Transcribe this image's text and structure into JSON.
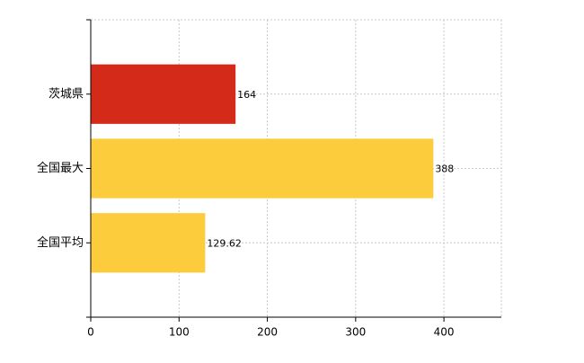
{
  "chart_data": {
    "type": "bar",
    "orientation": "horizontal",
    "categories": [
      "茨城県",
      "全国最大",
      "全国平均"
    ],
    "values": [
      164,
      388,
      129.62
    ],
    "colors": [
      "#d42a1a",
      "#fccc3c",
      "#fccc3c"
    ],
    "xlim": [
      0,
      465
    ],
    "xticks": [
      0,
      100,
      200,
      300,
      400
    ],
    "grid": true
  }
}
